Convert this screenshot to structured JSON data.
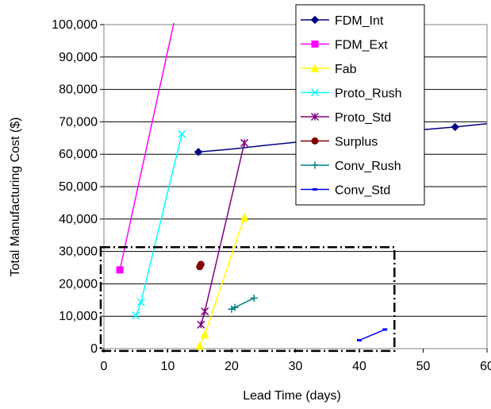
{
  "chart_data": {
    "type": "line",
    "xlabel": "Lead Time (days)",
    "ylabel": "Total Manufacturing Cost ($)",
    "xlim": [
      0,
      60
    ],
    "ylim": [
      0,
      100000
    ],
    "x_ticks": [
      "0",
      "10",
      "20",
      "30",
      "40",
      "50",
      "60"
    ],
    "y_ticks": [
      "0",
      "10,000",
      "20,000",
      "30,000",
      "40,000",
      "50,000",
      "60,000",
      "70,000",
      "80,000",
      "90,000",
      "100,000"
    ],
    "grid": "horizontal",
    "legend_position": "top-right",
    "highlight_box": {
      "x_range": [
        -0.5,
        45.5
      ],
      "y_range": [
        -700,
        31300
      ],
      "style": "dash-dot"
    },
    "series": [
      {
        "name": "FDM_Int",
        "color": "#000080",
        "marker": "diamond",
        "x": [
          14.8,
          20,
          25,
          30,
          35,
          40,
          45,
          50,
          55,
          60
        ],
        "y": [
          60700,
          61600,
          62700,
          63700,
          64700,
          65700,
          66700,
          67600,
          68400,
          69400
        ]
      },
      {
        "name": "FDM_Ext",
        "color": "#ff00ff",
        "marker": "square",
        "x": [
          2.5,
          11
        ],
        "y": [
          24300,
          101000
        ]
      },
      {
        "name": "Fab",
        "color": "#ffff00",
        "marker": "triangle",
        "x": [
          15,
          15.8,
          22
        ],
        "y": [
          900,
          4400,
          40500
        ]
      },
      {
        "name": "Proto_Rush",
        "color": "#00ffff",
        "marker": "x",
        "x": [
          5,
          5.8,
          12.2
        ],
        "y": [
          10200,
          14300,
          66200
        ]
      },
      {
        "name": "Proto_Std",
        "color": "#800080",
        "marker": "star",
        "x": [
          15.2,
          15.8,
          22
        ],
        "y": [
          7400,
          11500,
          63500
        ]
      },
      {
        "name": "Surplus",
        "color": "#800000",
        "marker": "circle",
        "line": false,
        "x": [
          15,
          15.2
        ],
        "y": [
          25300,
          26000
        ]
      },
      {
        "name": "Conv_Rush",
        "color": "#008080",
        "marker": "plus",
        "x": [
          20,
          20.5,
          23.5
        ],
        "y": [
          12200,
          12700,
          15600
        ]
      },
      {
        "name": "Conv_Std",
        "color": "#0000ff",
        "marker": "dash",
        "x": [
          40,
          44
        ],
        "y": [
          2600,
          5900
        ]
      }
    ]
  }
}
